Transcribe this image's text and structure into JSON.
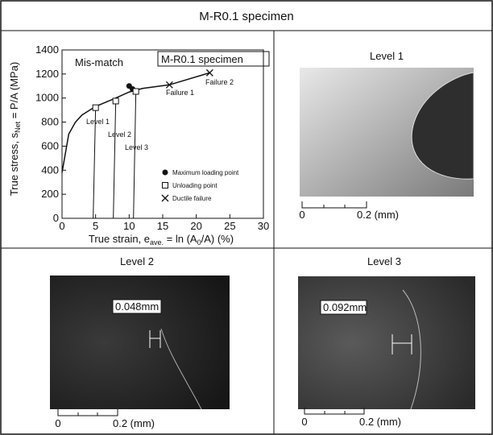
{
  "header": {
    "title": "M-R0.1 specimen"
  },
  "chart_data": {
    "type": "line",
    "xlabel": [
      "True strain, e",
      "ave.",
      " = ln (A",
      "0",
      "/A) (%)"
    ],
    "ylabel": [
      "True stress, s",
      "Net",
      " = P/A (MPa)"
    ],
    "xlim": [
      0,
      30
    ],
    "xticks": [
      0,
      5,
      10,
      15,
      20,
      25,
      30
    ],
    "ylim": [
      0,
      1400
    ],
    "yticks": [
      0,
      200,
      400,
      600,
      800,
      1000,
      1200,
      1400
    ],
    "curve": {
      "x": [
        0,
        1,
        2,
        3,
        5,
        8,
        10,
        12,
        16,
        22
      ],
      "values": [
        380,
        700,
        800,
        860,
        930,
        1000,
        1050,
        1080,
        1110,
        1210
      ],
      "color": "#111111"
    },
    "series": [
      {
        "name": "Maximum loading point",
        "marker": "circle",
        "x": [
          10,
          10.5
        ],
        "values": [
          1100,
          1075
        ]
      },
      {
        "name": "Unloading point",
        "marker": "square",
        "x": [
          5,
          8,
          11
        ],
        "values": [
          920,
          975,
          1055
        ]
      },
      {
        "name": "Ductile failure",
        "marker": "cross",
        "x": [
          16,
          22
        ],
        "values": [
          1110,
          1210
        ]
      }
    ],
    "annotations": [
      "Mis-match",
      "M-R0.1 specimen",
      "Level 1",
      "Level 2",
      "Level 3",
      "Failure 1",
      "Failure 2"
    ]
  },
  "panels": [
    {
      "title": "Level 1",
      "scale": [
        "0",
        "0.2 (mm)"
      ]
    },
    {
      "title": "Level 2",
      "measure": "0.048mm",
      "scale": [
        "0",
        "0.2 (mm)"
      ]
    },
    {
      "title": "Level 3",
      "measure": "0.092mm",
      "scale": [
        "0",
        "0.2 (mm)"
      ]
    }
  ]
}
